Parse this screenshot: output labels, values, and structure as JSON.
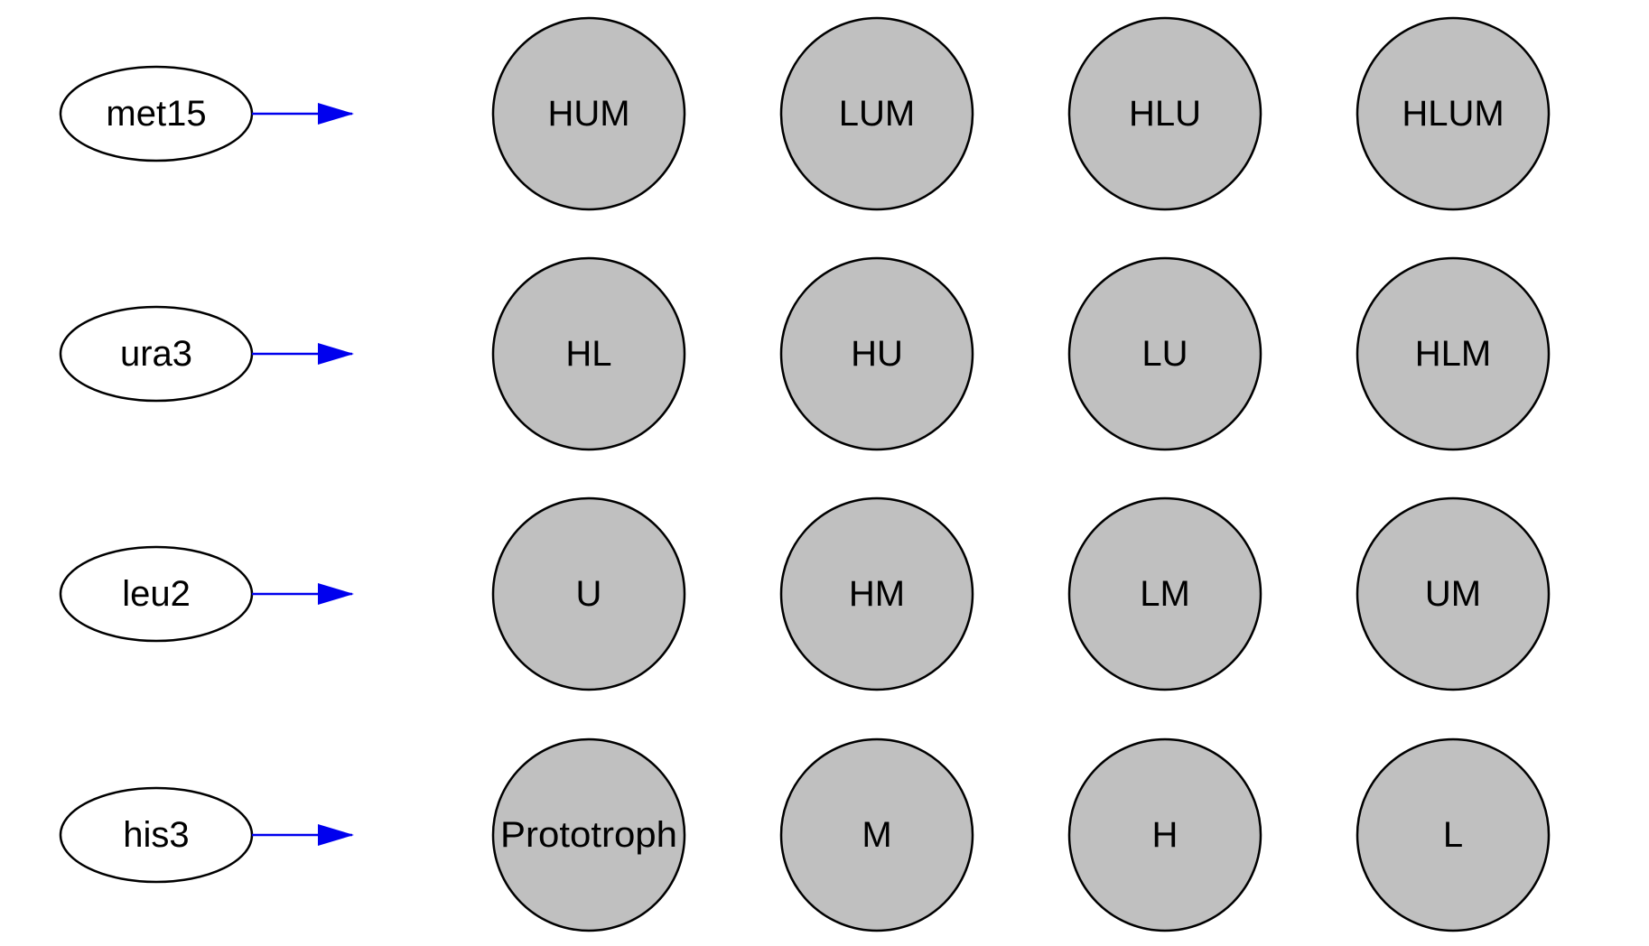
{
  "colors": {
    "background": "#ffffff",
    "node_fill": "#c0c0c0",
    "node_stroke": "#000000",
    "gene_fill": "#ffffff",
    "arrow": "#0000ee",
    "text": "#000000"
  },
  "genes": [
    {
      "label": "met15"
    },
    {
      "label": "ura3"
    },
    {
      "label": "leu2"
    },
    {
      "label": "his3"
    }
  ],
  "strain_rows": [
    [
      {
        "label": "HUM"
      },
      {
        "label": "LUM"
      },
      {
        "label": "HLU"
      },
      {
        "label": "HLUM"
      }
    ],
    [
      {
        "label": "HL"
      },
      {
        "label": "HU"
      },
      {
        "label": "LU"
      },
      {
        "label": "HLM"
      }
    ],
    [
      {
        "label": "U"
      },
      {
        "label": "HM"
      },
      {
        "label": "LM"
      },
      {
        "label": "UM"
      }
    ],
    [
      {
        "label": "Prototroph"
      },
      {
        "label": "M"
      },
      {
        "label": "H"
      },
      {
        "label": "L"
      }
    ]
  ]
}
